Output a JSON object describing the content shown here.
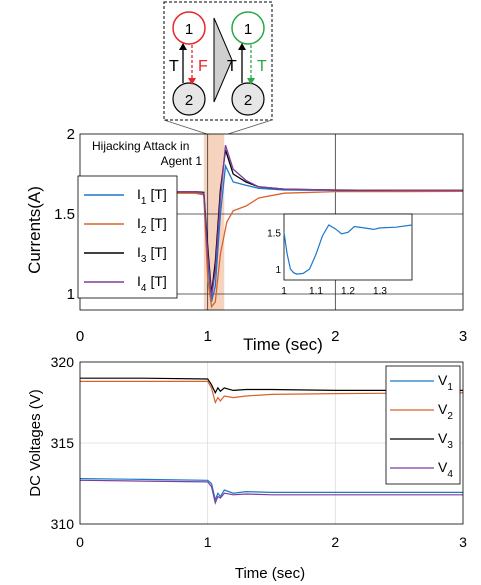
{
  "inset_diagram": {
    "left": {
      "top_node": "1",
      "bottom_node": "2",
      "up_label": "T",
      "down_label": "F"
    },
    "right": {
      "top_node": "1",
      "bottom_node": "2",
      "up_label": "T",
      "down_label": "T"
    }
  },
  "colors": {
    "node_red": "#e8262a",
    "node_green": "#2aa84a",
    "f_arrow": "#e8262a",
    "t_arrow": "#2aa84a",
    "attack_band": "#f6d3bf",
    "i1": "#1f77c8",
    "i2": "#d9622b",
    "i3": "#000000",
    "i4": "#7b3f9e",
    "v1": "#1f77c8",
    "v2": "#d9622b",
    "v3": "#000000",
    "v4": "#7b3f9e"
  },
  "chart_data": [
    {
      "type": "line",
      "xlabel": "Time (sec)",
      "ylabel": "Currents(A)",
      "xlim": [
        0,
        3
      ],
      "ylim": [
        0.9,
        2
      ],
      "x_ticks": [
        0,
        1,
        2,
        3
      ],
      "y_ticks": [
        1,
        1.5,
        2
      ],
      "annotation": "Hijacking Attack in Agent 1",
      "attack_window": [
        0.97,
        1.13
      ],
      "legend": [
        {
          "sym": "I",
          "sub": "1",
          "tag": "[T]"
        },
        {
          "sym": "I",
          "sub": "2",
          "tag": "[T]"
        },
        {
          "sym": "I",
          "sub": "3",
          "tag": "[T]"
        },
        {
          "sym": "I",
          "sub": "4",
          "tag": "[T]"
        }
      ],
      "legend_position": "left",
      "series": [
        {
          "key": "i1",
          "x": [
            0,
            0.5,
            0.9,
            0.97,
            1.0,
            1.03,
            1.06,
            1.1,
            1.14,
            1.2,
            1.3,
            1.4,
            1.6,
            2.0,
            2.5,
            3.0
          ],
          "y": [
            1.635,
            1.635,
            1.635,
            1.63,
            1.2,
            0.95,
            1.05,
            1.5,
            1.8,
            1.7,
            1.68,
            1.66,
            1.65,
            1.648,
            1.645,
            1.645
          ]
        },
        {
          "key": "i2",
          "x": [
            0,
            0.5,
            0.9,
            0.97,
            1.0,
            1.03,
            1.06,
            1.1,
            1.15,
            1.2,
            1.3,
            1.4,
            1.6,
            2.0,
            2.5,
            3.0
          ],
          "y": [
            1.63,
            1.63,
            1.63,
            1.62,
            1.1,
            0.92,
            0.95,
            1.25,
            1.45,
            1.52,
            1.55,
            1.6,
            1.63,
            1.64,
            1.64,
            1.642
          ]
        },
        {
          "key": "i3",
          "x": [
            0,
            0.5,
            0.9,
            0.97,
            1.0,
            1.03,
            1.06,
            1.1,
            1.14,
            1.2,
            1.3,
            1.4,
            1.6,
            2.0,
            2.5,
            3.0
          ],
          "y": [
            1.64,
            1.64,
            1.64,
            1.635,
            1.3,
            1.0,
            1.2,
            1.65,
            1.9,
            1.75,
            1.7,
            1.67,
            1.655,
            1.65,
            1.648,
            1.648
          ]
        },
        {
          "key": "i4",
          "x": [
            0,
            0.5,
            0.9,
            0.97,
            1.0,
            1.03,
            1.06,
            1.1,
            1.14,
            1.2,
            1.3,
            1.4,
            1.6,
            2.0,
            2.5,
            3.0
          ],
          "y": [
            1.64,
            1.64,
            1.64,
            1.63,
            1.25,
            0.98,
            1.15,
            1.6,
            1.93,
            1.78,
            1.71,
            1.67,
            1.655,
            1.65,
            1.648,
            1.648
          ]
        }
      ],
      "inset": {
        "xlim": [
          1,
          1.4
        ],
        "ylim": [
          0.85,
          1.75
        ],
        "x_ticks": [
          1,
          1.1,
          1.2,
          1.3
        ],
        "y_ticks": [
          1,
          1.5
        ],
        "x": [
          1.0,
          1.01,
          1.02,
          1.03,
          1.04,
          1.06,
          1.08,
          1.1,
          1.12,
          1.14,
          1.16,
          1.18,
          1.2,
          1.22,
          1.25,
          1.28,
          1.3,
          1.35,
          1.4
        ],
        "y": [
          1.5,
          1.2,
          1.0,
          0.95,
          0.93,
          0.94,
          1.0,
          1.2,
          1.45,
          1.6,
          1.55,
          1.48,
          1.5,
          1.58,
          1.56,
          1.54,
          1.56,
          1.57,
          1.6
        ]
      }
    },
    {
      "type": "line",
      "xlabel": "Time (sec)",
      "ylabel": "DC Voltages (V)",
      "xlim": [
        0,
        3
      ],
      "ylim": [
        310,
        320
      ],
      "x_ticks": [
        0,
        1,
        2,
        3
      ],
      "y_ticks": [
        310,
        315,
        320
      ],
      "legend": [
        {
          "sym": "V",
          "sub": "1"
        },
        {
          "sym": "V",
          "sub": "2"
        },
        {
          "sym": "V",
          "sub": "3"
        },
        {
          "sym": "V",
          "sub": "4"
        }
      ],
      "legend_position": "right",
      "series": [
        {
          "key": "v1",
          "x": [
            0,
            0.5,
            1.0,
            1.03,
            1.06,
            1.08,
            1.1,
            1.13,
            1.2,
            1.3,
            1.5,
            2.0,
            3.0
          ],
          "y": [
            312.8,
            312.75,
            312.7,
            312.5,
            311.5,
            311.9,
            311.7,
            312.1,
            311.9,
            312.0,
            311.95,
            311.95,
            311.95
          ]
        },
        {
          "key": "v2",
          "x": [
            0,
            0.5,
            1.0,
            1.03,
            1.06,
            1.08,
            1.1,
            1.13,
            1.2,
            1.3,
            1.5,
            2.0,
            3.0
          ],
          "y": [
            318.8,
            318.8,
            318.8,
            318.4,
            317.5,
            317.8,
            317.6,
            317.9,
            317.8,
            317.9,
            318.0,
            318.05,
            318.1
          ]
        },
        {
          "key": "v3",
          "x": [
            0,
            0.5,
            1.0,
            1.03,
            1.06,
            1.08,
            1.1,
            1.13,
            1.2,
            1.3,
            1.5,
            2.0,
            3.0
          ],
          "y": [
            319.0,
            319.0,
            318.95,
            318.6,
            318.1,
            318.4,
            318.2,
            318.4,
            318.25,
            318.3,
            318.3,
            318.25,
            318.25
          ]
        },
        {
          "key": "v4",
          "x": [
            0,
            0.5,
            1.0,
            1.03,
            1.06,
            1.08,
            1.1,
            1.13,
            1.2,
            1.3,
            1.5,
            2.0,
            3.0
          ],
          "y": [
            312.7,
            312.65,
            312.6,
            312.3,
            311.3,
            311.7,
            311.6,
            311.9,
            311.8,
            311.85,
            311.8,
            311.8,
            311.8
          ]
        }
      ]
    }
  ]
}
